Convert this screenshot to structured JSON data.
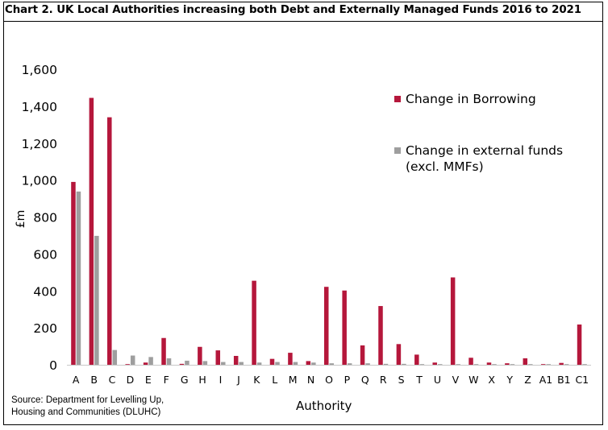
{
  "title": "Chart 2. UK Local Authorities increasing both Debt and Externally Managed Funds 2016 to 2021",
  "source": [
    "Source: Department for Levelling Up,",
    "Housing and Communities (DLUHC)"
  ],
  "colors": {
    "borrowing": "#b5173b",
    "external": "#9e9e9e"
  },
  "chart_data": {
    "type": "bar",
    "xlabel": "Authority",
    "ylabel": "£m",
    "ylim": [
      0,
      1600
    ],
    "yticks": [
      0,
      200,
      400,
      600,
      800,
      1000,
      1200,
      1400,
      1600
    ],
    "ytick_labels": [
      "0",
      "200",
      "400",
      "600",
      "800",
      "1,000",
      "1,200",
      "1,400",
      "1,600"
    ],
    "grid": false,
    "legend_position": "top-right",
    "categories": [
      "A",
      "B",
      "C",
      "D",
      "E",
      "F",
      "G",
      "H",
      "I",
      "J",
      "K",
      "L",
      "M",
      "N",
      "O",
      "P",
      "Q",
      "R",
      "S",
      "T",
      "U",
      "V",
      "W",
      "X",
      "Y",
      "Z",
      "A1",
      "B1",
      "C1"
    ],
    "series": [
      {
        "name": "Change in Borrowing",
        "color": "#b5173b",
        "values": [
          990,
          1445,
          1340,
          2,
          12,
          145,
          5,
          97,
          78,
          48,
          455,
          32,
          65,
          20,
          422,
          402,
          105,
          318,
          112,
          55,
          12,
          473,
          38,
          12,
          8,
          35,
          3,
          10,
          218
        ]
      },
      {
        "name": "Change in external funds (excl. MMFs)",
        "color": "#9e9e9e",
        "values": [
          938,
          698,
          80,
          50,
          42,
          35,
          22,
          20,
          15,
          15,
          12,
          15,
          15,
          12,
          8,
          8,
          8,
          5,
          5,
          3,
          3,
          2,
          2,
          2,
          2,
          2,
          2,
          2,
          2
        ]
      }
    ]
  }
}
